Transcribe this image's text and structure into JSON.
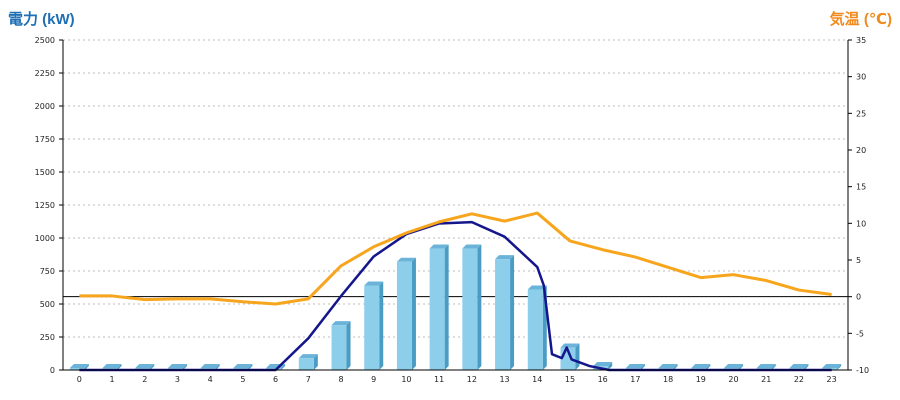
{
  "chart_data": {
    "type": "bar",
    "ylabel_left": "電力 (kW)",
    "ylabel_right": "気温 (℃)",
    "x": [
      "0",
      "1",
      "2",
      "3",
      "4",
      "5",
      "6",
      "7",
      "8",
      "9",
      "10",
      "11",
      "12",
      "13",
      "14",
      "15",
      "16",
      "17",
      "18",
      "19",
      "20",
      "21",
      "22",
      "23"
    ],
    "yticks_left": [
      "2500",
      "2250",
      "2000",
      "1750",
      "1500",
      "1250",
      "1000",
      "750",
      "500",
      "250",
      "0"
    ],
    "yticks_right": [
      "35",
      "30",
      "25",
      "20",
      "15",
      "10",
      "5",
      "0",
      "-5",
      "-10"
    ],
    "ylim_left": [
      0,
      2500
    ],
    "ylim_right": [
      -10,
      35
    ],
    "grid": true,
    "series": [
      {
        "values": [
          0,
          0,
          0,
          0,
          0,
          0,
          0,
          90,
          340,
          640,
          820,
          920,
          920,
          840,
          610,
          170,
          30,
          0,
          0,
          0,
          0,
          0,
          0,
          0
        ]
      },
      {
        "values": [
          0,
          0,
          0,
          0,
          0,
          0,
          0,
          240,
          560,
          860,
          1030,
          1110,
          1120,
          1010,
          780,
          90,
          0,
          0,
          0,
          0,
          0,
          0,
          0,
          0
        ],
        "extra_points": [
          [
            14.2,
            640
          ],
          [
            14.45,
            120
          ],
          [
            14.75,
            90
          ],
          [
            14.9,
            170
          ],
          [
            15.05,
            80
          ],
          [
            15.6,
            30
          ],
          [
            16.2,
            0
          ]
        ]
      },
      {
        "values": [
          0.1,
          0.1,
          -0.4,
          -0.3,
          -0.3,
          -0.7,
          -1.0,
          -0.3,
          4.2,
          6.8,
          8.7,
          10.2,
          11.3,
          10.3,
          11.4,
          7.6,
          6.4,
          5.4,
          4.0,
          2.6,
          3.0,
          2.2,
          0.9,
          0.3
        ]
      }
    ],
    "colors": {
      "bar": "#8dcfea",
      "bar_side": "#4a9cc4",
      "bar_top": "#6bb3d8",
      "power_line": "#15158c",
      "temp_line": "#f7a51c",
      "grid": "#bdbdbd"
    }
  }
}
